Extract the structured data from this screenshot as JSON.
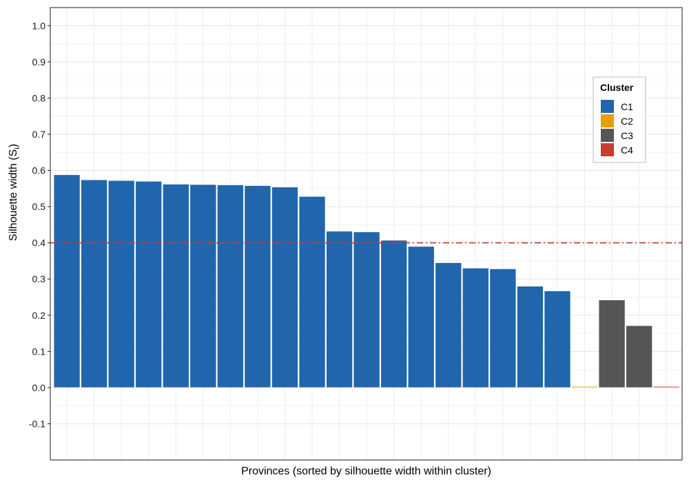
{
  "chart_data": {
    "type": "bar",
    "xlabel": "Provinces (sorted by silhouette width within cluster)",
    "ylabel": "Silhouette width (S",
    "ylabel_sub": "i",
    "ylabel_suffix": ")",
    "ylim": [
      -0.2,
      1.05
    ],
    "yticks": [
      "-0.1",
      "0.0",
      "0.1",
      "0.2",
      "0.3",
      "0.4",
      "0.5",
      "0.6",
      "0.7",
      "0.8",
      "0.9",
      "1.0"
    ],
    "grid": true,
    "reference_line": {
      "y": 0.4,
      "color": "#c83c32",
      "style": "dashed"
    },
    "legend": {
      "title": "Cluster",
      "position": "top-right",
      "items": [
        {
          "label": "C1",
          "color": "#2166ac"
        },
        {
          "label": "C2",
          "color": "#e69f00"
        },
        {
          "label": "C3",
          "color": "#555555"
        },
        {
          "label": "C4",
          "color": "#c83c32"
        }
      ]
    },
    "bars": [
      {
        "cluster": "C1",
        "value": 0.588
      },
      {
        "cluster": "C1",
        "value": 0.574
      },
      {
        "cluster": "C1",
        "value": 0.572
      },
      {
        "cluster": "C1",
        "value": 0.57
      },
      {
        "cluster": "C1",
        "value": 0.562
      },
      {
        "cluster": "C1",
        "value": 0.561
      },
      {
        "cluster": "C1",
        "value": 0.56
      },
      {
        "cluster": "C1",
        "value": 0.558
      },
      {
        "cluster": "C1",
        "value": 0.554
      },
      {
        "cluster": "C1",
        "value": 0.528
      },
      {
        "cluster": "C1",
        "value": 0.432
      },
      {
        "cluster": "C1",
        "value": 0.43
      },
      {
        "cluster": "C1",
        "value": 0.407
      },
      {
        "cluster": "C1",
        "value": 0.39
      },
      {
        "cluster": "C1",
        "value": 0.345
      },
      {
        "cluster": "C1",
        "value": 0.33
      },
      {
        "cluster": "C1",
        "value": 0.328
      },
      {
        "cluster": "C1",
        "value": 0.28
      },
      {
        "cluster": "C1",
        "value": 0.267
      },
      {
        "cluster": "C2",
        "value": 0.0
      },
      {
        "cluster": "C3",
        "value": 0.242
      },
      {
        "cluster": "C3",
        "value": 0.171
      },
      {
        "cluster": "C4",
        "value": 0.0
      }
    ]
  }
}
